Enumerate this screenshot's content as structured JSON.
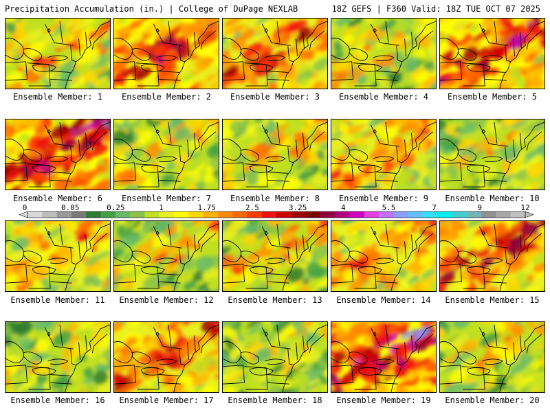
{
  "header": {
    "left": "Precipitation Accumulation (in.) | College of DuPage NEXLAB",
    "right": "18Z GEFS | F360 Valid: 18Z TUE OCT 07 2025"
  },
  "panels": [
    {
      "label": "Ensemble Member: 1",
      "intensity": 0.45
    },
    {
      "label": "Ensemble Member: 2",
      "intensity": 0.7
    },
    {
      "label": "Ensemble Member: 3",
      "intensity": 0.58
    },
    {
      "label": "Ensemble Member: 4",
      "intensity": 0.38
    },
    {
      "label": "Ensemble Member: 5",
      "intensity": 0.72
    },
    {
      "label": "Ensemble Member: 6",
      "intensity": 0.78
    },
    {
      "label": "Ensemble Member: 7",
      "intensity": 0.35
    },
    {
      "label": "Ensemble Member: 8",
      "intensity": 0.4
    },
    {
      "label": "Ensemble Member: 9",
      "intensity": 0.52
    },
    {
      "label": "Ensemble Member: 10",
      "intensity": 0.36
    },
    {
      "label": "Ensemble Member: 11",
      "intensity": 0.5
    },
    {
      "label": "Ensemble Member: 12",
      "intensity": 0.38
    },
    {
      "label": "Ensemble Member: 13",
      "intensity": 0.42
    },
    {
      "label": "Ensemble Member: 14",
      "intensity": 0.5
    },
    {
      "label": "Ensemble Member: 15",
      "intensity": 0.68
    },
    {
      "label": "Ensemble Member: 16",
      "intensity": 0.32
    },
    {
      "label": "Ensemble Member: 17",
      "intensity": 0.62
    },
    {
      "label": "Ensemble Member: 18",
      "intensity": 0.3
    },
    {
      "label": "Ensemble Member: 19",
      "intensity": 0.88
    },
    {
      "label": "Ensemble Member: 20",
      "intensity": 0.35
    }
  ],
  "colorbar": {
    "ticks": [
      "0",
      "0.05",
      "0.25",
      "1",
      "1.75",
      "2.5",
      "3.25",
      "4",
      "5.5",
      "7",
      "9",
      "12"
    ],
    "colors": [
      "#d9d9d9",
      "#bdbdbd",
      "#9a9a9a",
      "#7a7a7a",
      "#2e7d32",
      "#43a047",
      "#66bb6a",
      "#8bc34a",
      "#c0e020",
      "#e8f020",
      "#ffff00",
      "#ffd700",
      "#ffb300",
      "#ff8c00",
      "#ff6a00",
      "#ff3d00",
      "#ee1111",
      "#cc0000",
      "#a00000",
      "#800000",
      "#900040",
      "#b0007f",
      "#d000c0",
      "#e040e0",
      "#c070ff",
      "#8aa0ff",
      "#60c0ff",
      "#30e0ff",
      "#00f0f0",
      "#40d0d0",
      "#70b8b8",
      "#909090",
      "#a8a8a8",
      "#c0c0c0"
    ]
  }
}
